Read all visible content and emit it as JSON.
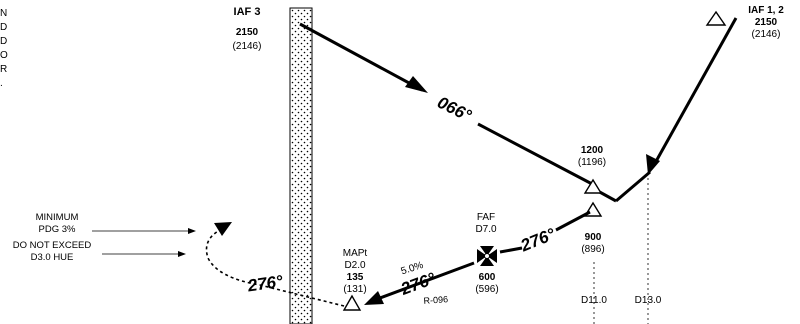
{
  "side_text": [
    "N",
    "D",
    "O",
    "R",
    "."
  ],
  "iaf3": {
    "label": "IAF 3",
    "alt": "2150",
    "ref": "(2146)"
  },
  "iaf12": {
    "label": "IAF 1, 2",
    "alt": "2150",
    "ref": "(2146)"
  },
  "courses": {
    "upper": "066°",
    "mid": "276°",
    "lower": "276°",
    "missed": "276°"
  },
  "fix_1200": {
    "alt": "1200",
    "ref": "(1196)"
  },
  "fix_900": {
    "alt": "900",
    "ref": "(896)"
  },
  "faf": {
    "label": "FAF",
    "dme": "D7.0",
    "alt": "600",
    "ref": "(596)"
  },
  "mapt": {
    "label": "MAPt",
    "dme": "D2.0",
    "alt": "135",
    "ref": "(131)"
  },
  "gradient": "5.0%",
  "radial": "R-096",
  "notes": {
    "line1": "MINIMUM",
    "line2": "PDG 3%",
    "line3": "DO NOT EXCEED",
    "line4": "D3.0 HUE"
  },
  "dme_marks": {
    "d11": "D11.0",
    "d13": "D13.0"
  }
}
